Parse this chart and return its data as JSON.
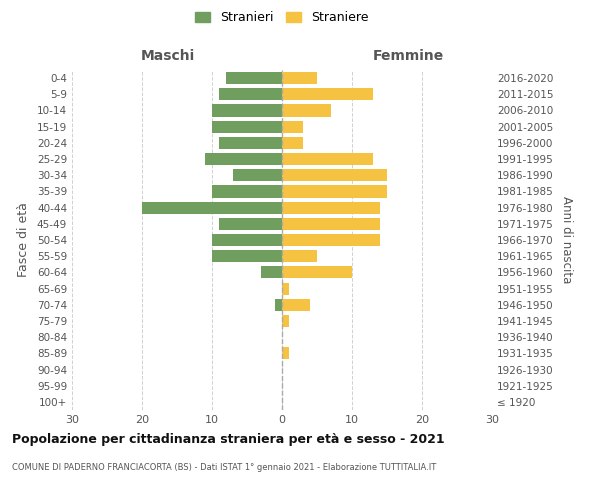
{
  "age_groups": [
    "0-4",
    "5-9",
    "10-14",
    "15-19",
    "20-24",
    "25-29",
    "30-34",
    "35-39",
    "40-44",
    "45-49",
    "50-54",
    "55-59",
    "60-64",
    "65-69",
    "70-74",
    "75-79",
    "80-84",
    "85-89",
    "90-94",
    "95-99",
    "100+"
  ],
  "birth_years": [
    "2016-2020",
    "2011-2015",
    "2006-2010",
    "2001-2005",
    "1996-2000",
    "1991-1995",
    "1986-1990",
    "1981-1985",
    "1976-1980",
    "1971-1975",
    "1966-1970",
    "1961-1965",
    "1956-1960",
    "1951-1955",
    "1946-1950",
    "1941-1945",
    "1936-1940",
    "1931-1935",
    "1926-1930",
    "1921-1925",
    "≤ 1920"
  ],
  "males": [
    8,
    9,
    10,
    10,
    9,
    11,
    7,
    10,
    20,
    9,
    10,
    10,
    3,
    0,
    1,
    0,
    0,
    0,
    0,
    0,
    0
  ],
  "females": [
    5,
    13,
    7,
    3,
    3,
    13,
    15,
    15,
    14,
    14,
    14,
    5,
    10,
    1,
    4,
    1,
    0,
    1,
    0,
    0,
    0
  ],
  "male_color": "#6f9e5e",
  "female_color": "#f5c242",
  "title": "Popolazione per cittadinanza straniera per età e sesso - 2021",
  "subtitle": "COMUNE DI PADERNO FRANCIACORTA (BS) - Dati ISTAT 1° gennaio 2021 - Elaborazione TUTTITALIA.IT",
  "xlabel_left": "Maschi",
  "xlabel_right": "Femmine",
  "ylabel_left": "Fasce di età",
  "ylabel_right": "Anni di nascita",
  "legend_male": "Stranieri",
  "legend_female": "Straniere",
  "xlim": 30,
  "background_color": "#ffffff",
  "grid_color": "#d0d0d0"
}
